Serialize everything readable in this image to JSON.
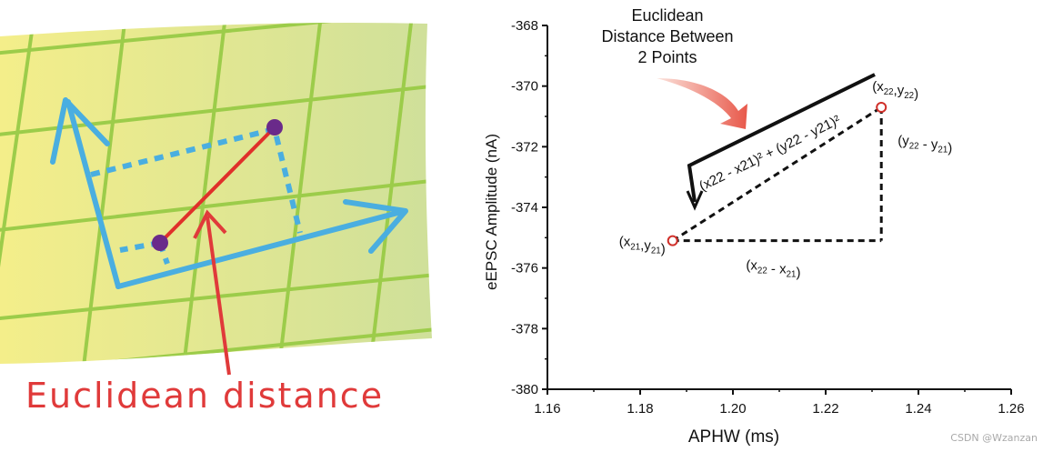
{
  "left": {
    "caption": "Euclidean distance",
    "colors": {
      "paper_left": "#f4ee8a",
      "paper_right": "#cfe09a",
      "grid": "#9ccc4a",
      "axis": "#4aaee0",
      "point": "#6a2a8a",
      "line": "#e0302a",
      "caption": "#e03a3a"
    }
  },
  "chart_data": {
    "type": "scatter",
    "xlabel": "APHW (ms)",
    "ylabel": "eEPSC Amplitude (nA)",
    "xlim": [
      1.16,
      1.26
    ],
    "ylim": [
      -380,
      -368
    ],
    "x_ticks": [
      "1.16",
      "1.18",
      "1.20",
      "1.22",
      "1.24",
      "1.26"
    ],
    "y_ticks": [
      "-368",
      "-370",
      "-372",
      "-374",
      "-376",
      "-378",
      "-380"
    ],
    "points": [
      {
        "x": 1.187,
        "y": -375.1
      },
      {
        "x": 1.232,
        "y": -370.7
      }
    ],
    "annotations": {
      "title_lines": [
        "Euclidean",
        "Distance Between",
        "2 Points"
      ],
      "p1_label": "(x21,y21)",
      "p2_label": "(x22,y22)",
      "dx_label": "(x22 - x21)",
      "dy_label": "(y22 - y21)",
      "formula": "(x22 - x21)² + (y22 - y21)²"
    },
    "colors": {
      "point": "#d0302a",
      "line": "#111111",
      "arrow": "#e8584a"
    }
  },
  "watermark": "CSDN @Wzanzan"
}
